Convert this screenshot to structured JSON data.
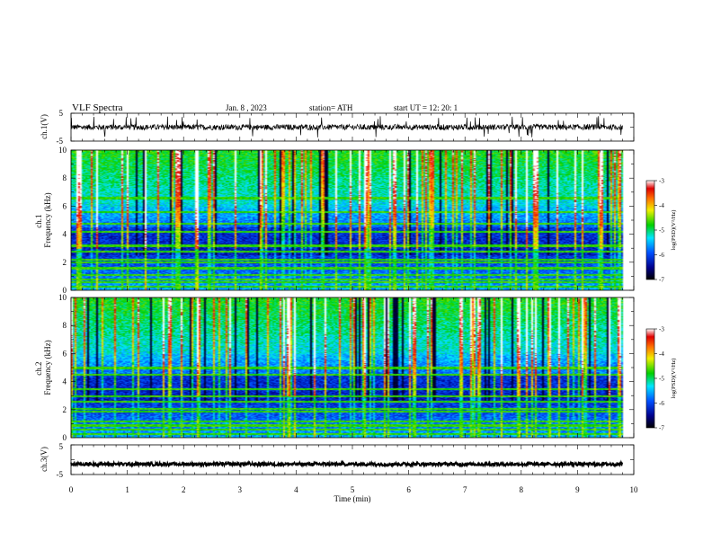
{
  "header": {
    "title": "VLF  Spectra",
    "date": "Jan.  8   , 2023",
    "station": "station= ATH",
    "start": "start  UT  =    12: 20: 1"
  },
  "chart_data": [
    {
      "type": "line",
      "panel": "waveform-ch1",
      "ylabel": "ch.1(V)",
      "ylim": [
        -5,
        5
      ],
      "y_ticks": [
        "5",
        "-5"
      ],
      "xlim": [
        0,
        10
      ],
      "signal": {
        "baseline": 0,
        "noise_amplitude": 1,
        "spike_amplitude": 4,
        "extends_to_min": 9.8
      }
    },
    {
      "type": "heatmap",
      "panel": "spectrogram-ch1",
      "ylabel": "ch.1\nFrequency  (kHz)",
      "ylim": [
        0,
        10
      ],
      "y_ticks": [
        "0",
        "2",
        "4",
        "6",
        "8",
        "10"
      ],
      "xlim": [
        0,
        10
      ],
      "colorbar": {
        "label": "log(PSD)(V²/Hz)",
        "range": [
          -7,
          -3
        ],
        "ticks": [
          "-3",
          "-4",
          "-5",
          "-6",
          "-7"
        ]
      },
      "bands_khz": [
        0.3,
        0.6,
        0.8,
        1.1,
        1.6,
        2.0,
        2.2,
        2.8,
        3.2,
        4.2,
        4.8,
        5.6,
        6.6
      ],
      "data_ends_min": 9.8
    },
    {
      "type": "heatmap",
      "panel": "spectrogram-ch2",
      "ylabel": "ch.2\nFrequency  (kHz)",
      "ylim": [
        0,
        10
      ],
      "y_ticks": [
        "0",
        "2",
        "4",
        "6",
        "8",
        "10"
      ],
      "xlim": [
        0,
        10
      ],
      "colorbar": {
        "label": "log(PSD)(V²/Hz)",
        "range": [
          -7,
          -3
        ],
        "ticks": [
          "-3",
          "-4",
          "-5",
          "-6",
          "-7"
        ]
      },
      "bands_khz": [
        0.3,
        0.6,
        0.9,
        1.2,
        1.9,
        2.1,
        2.6,
        3.0,
        3.5,
        4.5,
        5.0
      ],
      "data_ends_min": 9.8
    },
    {
      "type": "line",
      "panel": "waveform-ch3",
      "ylabel": "ch.3(V)",
      "ylim": [
        -5,
        5
      ],
      "y_ticks": [
        "5",
        "-5"
      ],
      "xlim": [
        0,
        10
      ],
      "x_ticks": [
        "0",
        "1",
        "2",
        "3",
        "4",
        "5",
        "6",
        "7",
        "8",
        "9",
        "10"
      ],
      "xlabel": "Time  (min)",
      "signal": {
        "baseline": -1.5,
        "noise_amplitude": 0.6,
        "extends_to_min": 9.8
      }
    }
  ]
}
